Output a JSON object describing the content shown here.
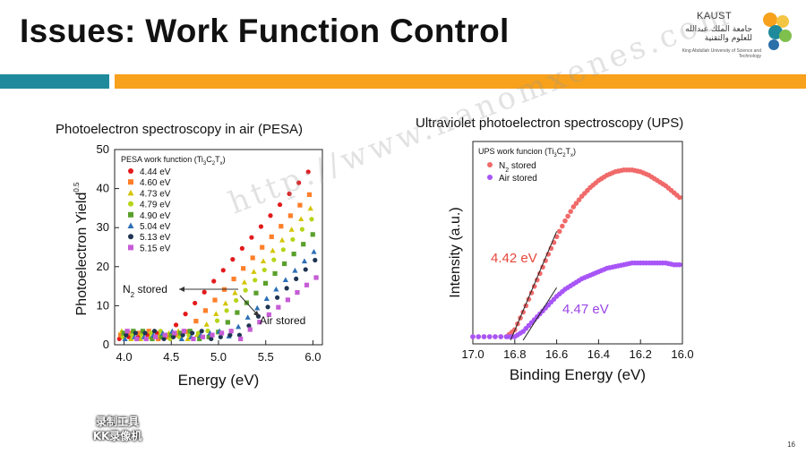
{
  "slide": {
    "title": "Issues: Work Function Control",
    "page_number": "16",
    "colors": {
      "teal_band": "#1f8a9b",
      "orange_band": "#f7a11c"
    }
  },
  "logo": {
    "brand": "KAUST",
    "arabic": "جامعة الملك عبدالله للعلوم والتقنية",
    "english": "King Abdullah University of Science and Technology"
  },
  "watermark": "http://www.nanomxenes.com",
  "recorder_badge": {
    "line1": "录制工具",
    "line2": "KK录像机"
  },
  "chart_data": [
    {
      "type": "scatter",
      "title": "Photoelectron spectroscopy in air (PESA)",
      "xlabel": "Energy (eV)",
      "ylabel": "Photoelectron Yield",
      "ylabel_superscript": "0.5",
      "xlim": [
        3.9,
        6.1
      ],
      "ylim": [
        0,
        50
      ],
      "xticks": [
        "4.0",
        "4.5",
        "5.0",
        "5.5",
        "6.0"
      ],
      "yticks": [
        "0",
        "10",
        "20",
        "30",
        "40",
        "50"
      ],
      "legend_title": "PESA work function (Ti3C2Tx)",
      "legend_placement": "top-left",
      "annotations": [
        "N2 stored",
        "Air stored"
      ],
      "series": [
        {
          "name": "4.44 eV",
          "color": "#e31a1c",
          "marker": "circle",
          "onset": 4.44,
          "slope": 28
        },
        {
          "name": "4.60 eV",
          "color": "#ff7f2a",
          "marker": "square",
          "onset": 4.6,
          "slope": 27
        },
        {
          "name": "4.73 eV",
          "color": "#d4c400",
          "marker": "triangle",
          "onset": 4.73,
          "slope": 27
        },
        {
          "name": "4.79 eV",
          "color": "#b6d51a",
          "marker": "circle",
          "onset": 4.79,
          "slope": 26
        },
        {
          "name": "4.90 eV",
          "color": "#5aa02c",
          "marker": "square",
          "onset": 4.9,
          "slope": 25
        },
        {
          "name": "5.04 eV",
          "color": "#2c6fb5",
          "marker": "triangle",
          "onset": 5.04,
          "slope": 24
        },
        {
          "name": "5.13 eV",
          "color": "#1f3552",
          "marker": "circle",
          "onset": 5.13,
          "slope": 24
        },
        {
          "name": "5.15 eV",
          "color": "#c65cd6",
          "marker": "square",
          "onset": 5.15,
          "slope": 19
        }
      ]
    },
    {
      "type": "line",
      "title": "Ultraviolet photoelectron spectroscopy (UPS)",
      "xlabel": "Binding Energy (eV)",
      "ylabel": "Intensity (a.u.)",
      "xlim": [
        17.0,
        16.0
      ],
      "x_axis_reversed": true,
      "xticks": [
        "17.0",
        "16.8",
        "16.6",
        "16.4",
        "16.2",
        "16.0"
      ],
      "legend_title": "UPS work funcion (Ti3C2Tx)",
      "legend_placement": "top-left",
      "series": [
        {
          "name": "N2 stored",
          "color": "#f06a6a",
          "label": "4.42 eV",
          "x": [
            17.0,
            16.92,
            16.84,
            16.8,
            16.76,
            16.72,
            16.68,
            16.64,
            16.6,
            16.56,
            16.52,
            16.48,
            16.44,
            16.4,
            16.36,
            16.32,
            16.28,
            16.24,
            16.2,
            16.16,
            16.12,
            16.08,
            16.04,
            16.0
          ],
          "y": [
            0.0,
            0.0,
            0.0,
            0.04,
            0.14,
            0.25,
            0.36,
            0.47,
            0.57,
            0.66,
            0.74,
            0.8,
            0.85,
            0.89,
            0.92,
            0.94,
            0.95,
            0.95,
            0.94,
            0.92,
            0.89,
            0.86,
            0.82,
            0.78
          ]
        },
        {
          "name": "Air stored",
          "color": "#a855f7",
          "label": "4.47 eV",
          "x": [
            17.0,
            16.92,
            16.84,
            16.8,
            16.76,
            16.72,
            16.68,
            16.64,
            16.6,
            16.56,
            16.52,
            16.48,
            16.44,
            16.4,
            16.36,
            16.32,
            16.28,
            16.24,
            16.2,
            16.16,
            16.12,
            16.08,
            16.04,
            16.0
          ],
          "y": [
            0.0,
            0.0,
            0.0,
            0.0,
            0.03,
            0.08,
            0.13,
            0.18,
            0.23,
            0.27,
            0.3,
            0.33,
            0.35,
            0.37,
            0.39,
            0.4,
            0.41,
            0.42,
            0.42,
            0.42,
            0.42,
            0.42,
            0.41,
            0.41
          ]
        }
      ]
    }
  ]
}
